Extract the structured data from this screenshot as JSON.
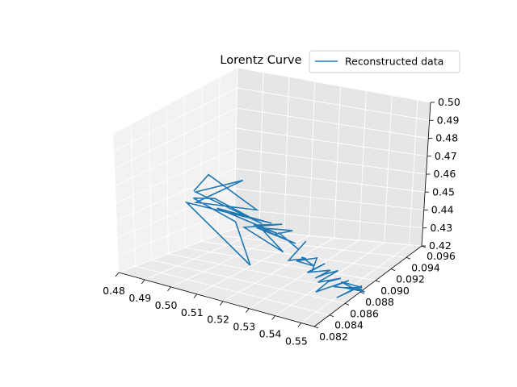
{
  "chart_data": {
    "type": "line",
    "projection": "3d",
    "title": "Lorentz Curve",
    "xlabel": "",
    "ylabel": "",
    "zlabel": "",
    "xlim": [
      0.48,
      0.555
    ],
    "ylim": [
      0.082,
      0.096
    ],
    "zlim": [
      0.42,
      0.5
    ],
    "x_ticks": [
      "0.48",
      "0.49",
      "0.50",
      "0.51",
      "0.52",
      "0.53",
      "0.54",
      "0.55"
    ],
    "y_ticks": [
      "0.082",
      "0.084",
      "0.086",
      "0.088",
      "0.090",
      "0.092",
      "0.094",
      "0.096"
    ],
    "z_ticks": [
      "0.42",
      "0.43",
      "0.44",
      "0.45",
      "0.46",
      "0.47",
      "0.48",
      "0.49",
      "0.50"
    ],
    "grid": true,
    "legend_position": "top-right",
    "series": [
      {
        "name": "Reconstructed data",
        "color": "#1f77b4",
        "points": [
          [
            0.486,
            0.0885,
            0.456
          ],
          [
            0.492,
            0.0885,
            0.468
          ],
          [
            0.507,
            0.0875,
            0.452
          ],
          [
            0.489,
            0.0892,
            0.452
          ],
          [
            0.503,
            0.0878,
            0.468
          ],
          [
            0.489,
            0.0892,
            0.458
          ],
          [
            0.512,
            0.0885,
            0.448
          ],
          [
            0.495,
            0.0888,
            0.456
          ],
          [
            0.489,
            0.0895,
            0.455
          ],
          [
            0.505,
            0.0895,
            0.448
          ],
          [
            0.51,
            0.0895,
            0.425
          ],
          [
            0.487,
            0.0897,
            0.452
          ],
          [
            0.518,
            0.0892,
            0.452
          ],
          [
            0.498,
            0.0895,
            0.453
          ],
          [
            0.52,
            0.0892,
            0.447
          ],
          [
            0.511,
            0.0892,
            0.448
          ],
          [
            0.523,
            0.0895,
            0.454
          ],
          [
            0.505,
            0.0885,
            0.443
          ],
          [
            0.523,
            0.0895,
            0.438
          ],
          [
            0.515,
            0.0895,
            0.448
          ],
          [
            0.528,
            0.0895,
            0.445
          ],
          [
            0.513,
            0.0895,
            0.448
          ],
          [
            0.527,
            0.0895,
            0.452
          ],
          [
            0.52,
            0.0895,
            0.447
          ],
          [
            0.527,
            0.0902,
            0.448
          ],
          [
            0.528,
            0.0915,
            0.455
          ],
          [
            0.529,
            0.0895,
            0.442
          ],
          [
            0.532,
            0.0895,
            0.448
          ],
          [
            0.525,
            0.0895,
            0.434
          ],
          [
            0.535,
            0.0905,
            0.441
          ],
          [
            0.53,
            0.0895,
            0.438
          ],
          [
            0.538,
            0.0905,
            0.438
          ],
          [
            0.528,
            0.0895,
            0.435
          ],
          [
            0.536,
            0.0895,
            0.44
          ],
          [
            0.534,
            0.0895,
            0.432
          ],
          [
            0.539,
            0.0895,
            0.438
          ],
          [
            0.532,
            0.0895,
            0.43
          ],
          [
            0.541,
            0.0895,
            0.435
          ],
          [
            0.535,
            0.0895,
            0.428
          ],
          [
            0.539,
            0.0895,
            0.432
          ],
          [
            0.544,
            0.0895,
            0.436
          ],
          [
            0.536,
            0.0895,
            0.426
          ],
          [
            0.545,
            0.0895,
            0.432
          ],
          [
            0.54,
            0.0895,
            0.428
          ],
          [
            0.535,
            0.0895,
            0.42
          ],
          [
            0.548,
            0.0895,
            0.432
          ],
          [
            0.542,
            0.0895,
            0.426
          ],
          [
            0.55,
            0.0895,
            0.428
          ],
          [
            0.545,
            0.0895,
            0.43
          ],
          [
            0.553,
            0.0895,
            0.43
          ],
          [
            0.546,
            0.0895,
            0.427
          ],
          [
            0.554,
            0.0895,
            0.428
          ],
          [
            0.551,
            0.0895,
            0.428
          ],
          [
            0.553,
            0.0895,
            0.431
          ],
          [
            0.543,
            0.0895,
            0.42
          ],
          [
            0.55,
            0.0895,
            0.428
          ],
          [
            0.553,
            0.0895,
            0.429
          ]
        ]
      }
    ]
  }
}
